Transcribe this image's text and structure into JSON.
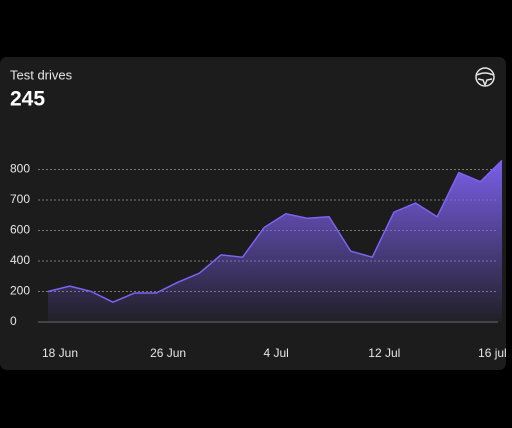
{
  "chart_data": {
    "type": "area",
    "title": "Test drives",
    "total": "245",
    "categories": [
      "18 Jun",
      null,
      null,
      null,
      null,
      "26 Jun",
      null,
      null,
      null,
      null,
      "4 Jul",
      null,
      null,
      null,
      null,
      "12 Jul",
      null,
      null,
      null,
      null,
      "16 jul",
      null
    ],
    "values": [
      200,
      235,
      200,
      130,
      190,
      190,
      260,
      320,
      440,
      425,
      610,
      655,
      640,
      645,
      465,
      425,
      660,
      690,
      645,
      790,
      760,
      830
    ],
    "color": "#7f62f3",
    "ylim": [
      0,
      830
    ],
    "yticks": [
      0,
      200,
      400,
      600,
      700,
      800
    ],
    "grid": true
  }
}
